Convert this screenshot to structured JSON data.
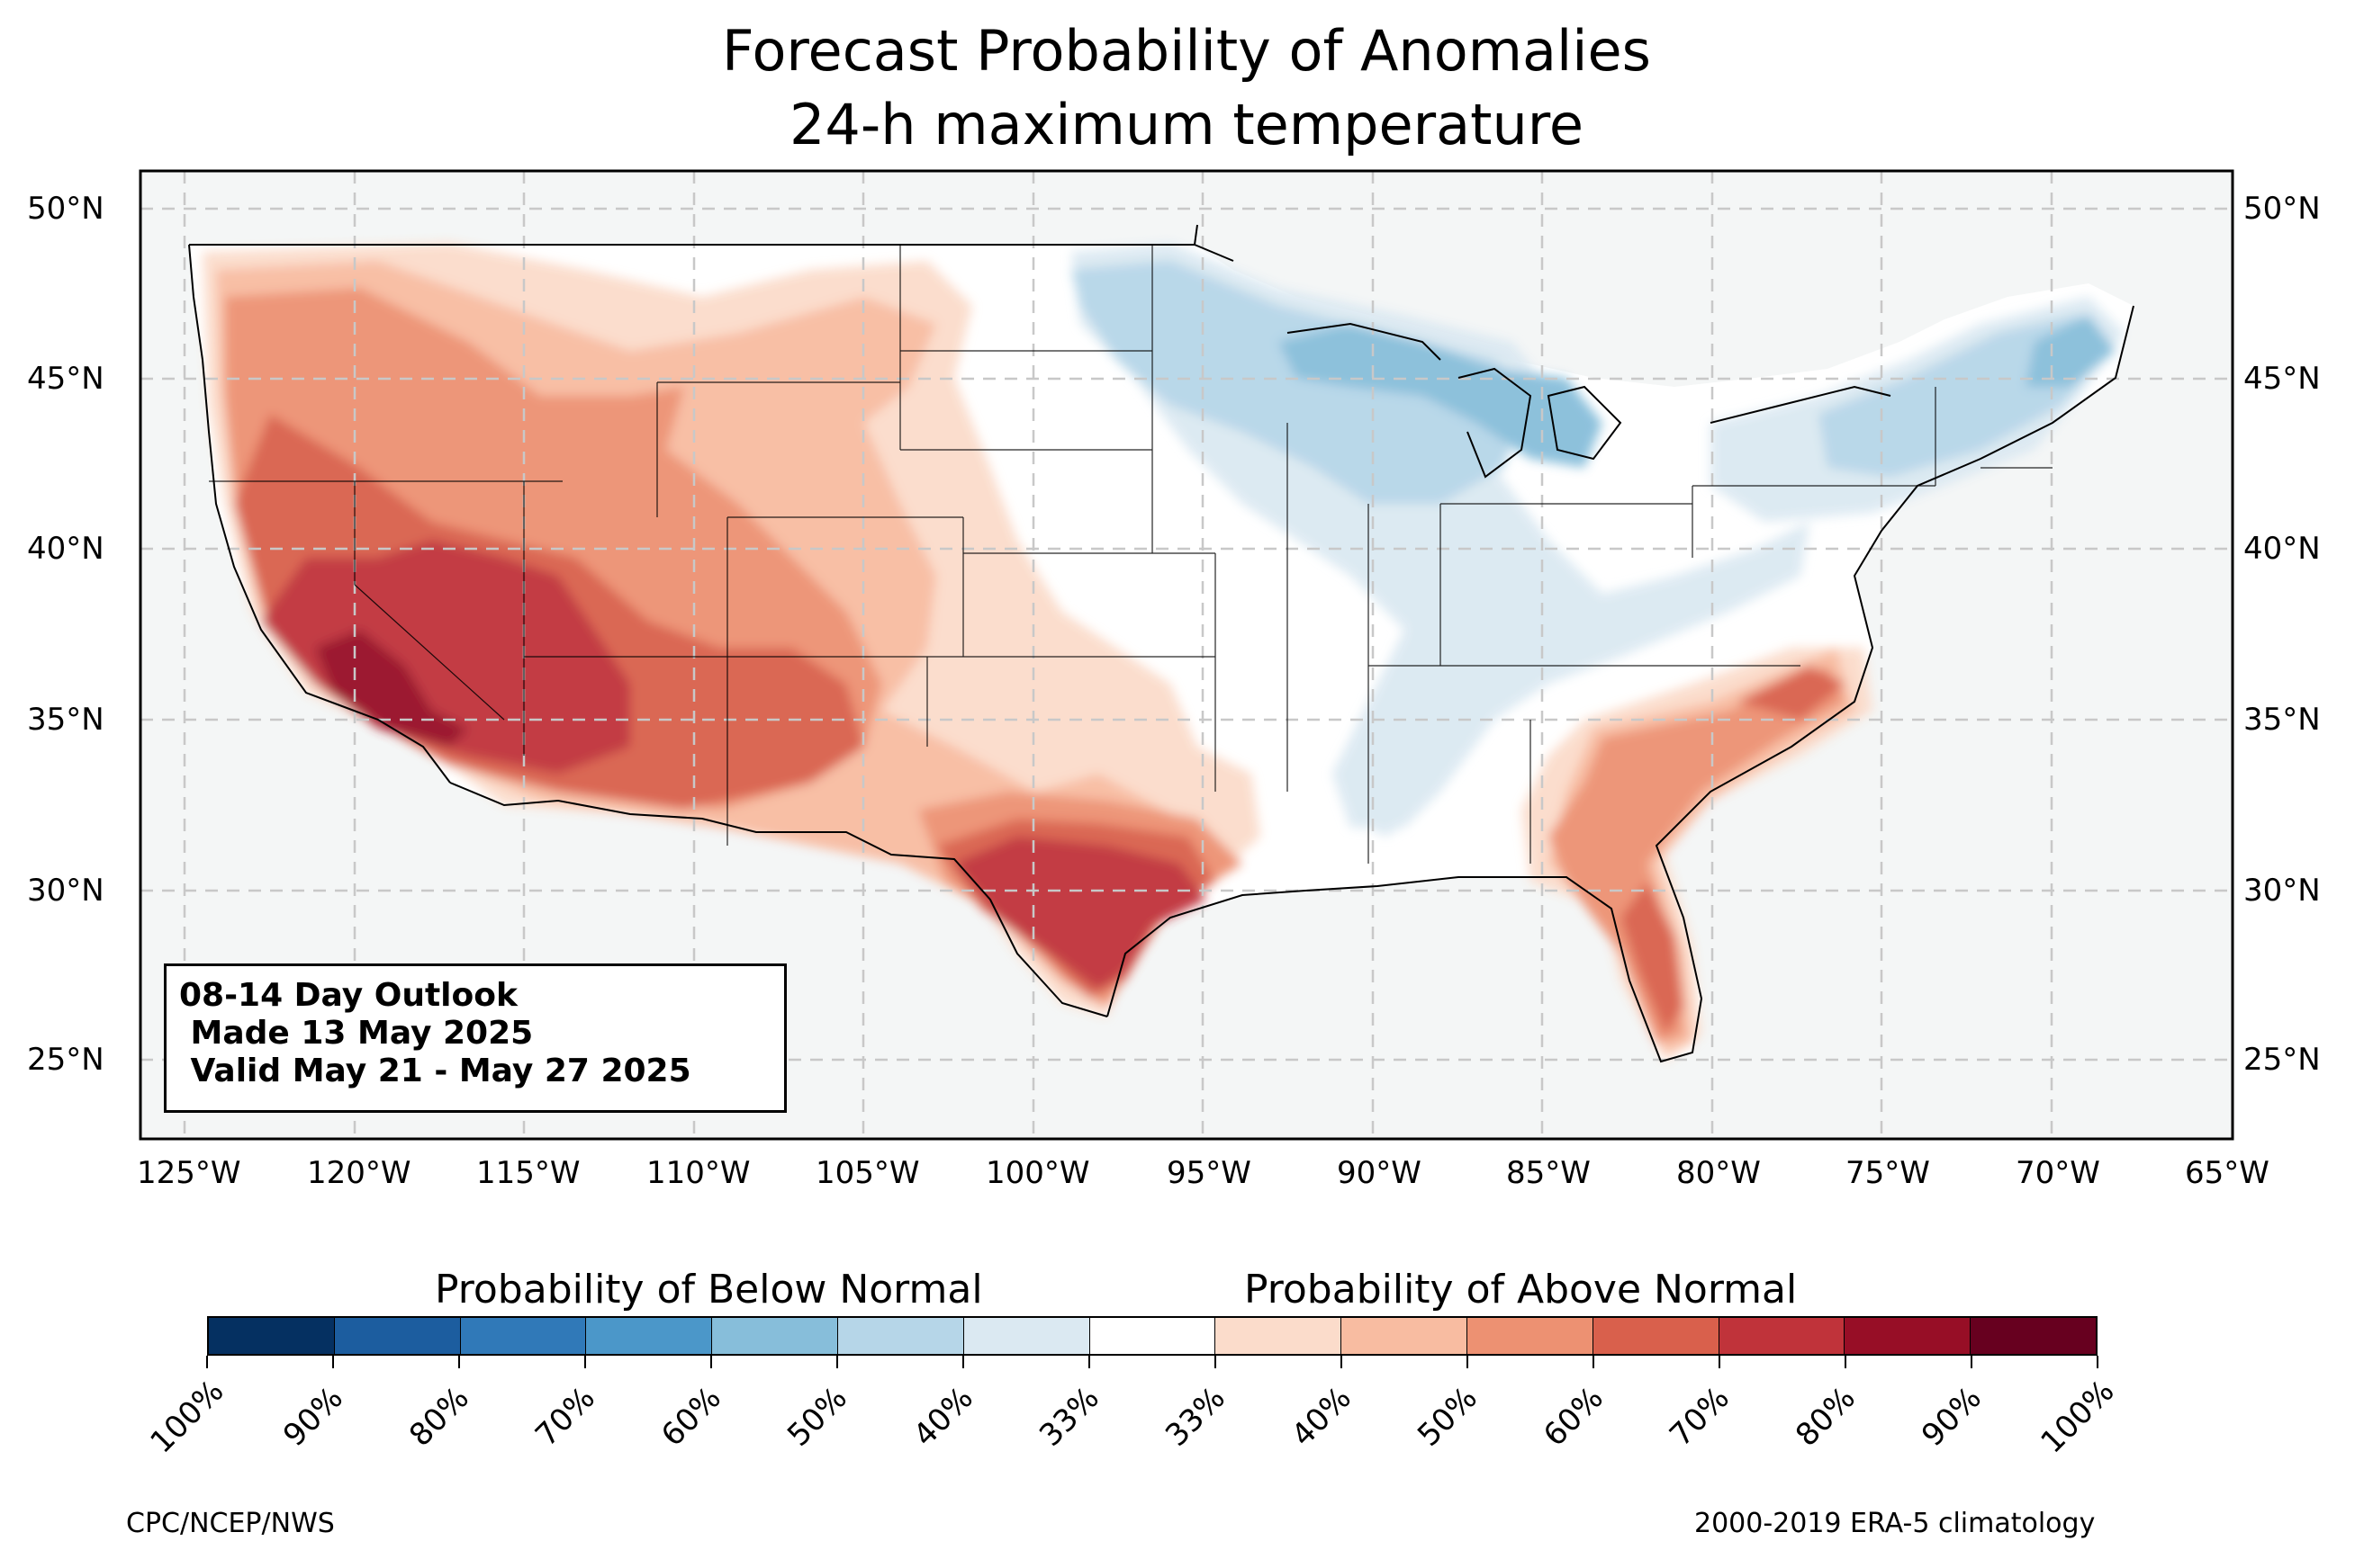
{
  "title": {
    "line1": "Forecast Probability of Anomalies",
    "line2": "24-h maximum temperature"
  },
  "map": {
    "region": "Contiguous United States",
    "lat_range": [
      22.7,
      51.2
    ],
    "lon_range": [
      -126.3,
      -65
    ],
    "lat_labels": [
      "50°N",
      "45°N",
      "40°N",
      "35°N",
      "30°N",
      "25°N"
    ],
    "lat_values": [
      50,
      45,
      40,
      35,
      30,
      25
    ],
    "lon_labels": [
      "125°W",
      "120°W",
      "115°W",
      "110°W",
      "105°W",
      "100°W",
      "95°W",
      "90°W",
      "85°W",
      "80°W",
      "75°W",
      "70°W",
      "65°W"
    ],
    "lon_values": [
      -125,
      -120,
      -115,
      -110,
      -105,
      -100,
      -95,
      -90,
      -85,
      -80,
      -75,
      -70,
      -65
    ],
    "gridlines": "dashed",
    "land_color": "#f4f6f6"
  },
  "info_box": {
    "line1": "08-14 Day Outlook",
    "line2": " Made 13 May 2025",
    "line3": " Valid May 21 - May 27 2025"
  },
  "colorbar": {
    "below_label": "Probability of Below Normal",
    "above_label": "Probability of Above Normal",
    "colors": [
      "#053061",
      "#1c5d9f",
      "#3079b8",
      "#4b97c9",
      "#87beda",
      "#b6d6e8",
      "#dbe9f2",
      "#ffffff",
      "#fbdccb",
      "#f8bca1",
      "#ed9172",
      "#d9604c",
      "#c0333a",
      "#970e26",
      "#67001f"
    ],
    "tick_labels": [
      "100%",
      "90%",
      "80%",
      "70%",
      "60%",
      "50%",
      "40%",
      "33%",
      "33%",
      "40%",
      "50%",
      "60%",
      "70%",
      "80%",
      "90%",
      "100%"
    ]
  },
  "footer": {
    "left": "CPC/NCEP/NWS",
    "right": "2000-2019 ERA-5 climatology"
  },
  "anomaly_regions": [
    {
      "name": "Southwest (CA/NV/AZ/UT)",
      "category": "above",
      "max_probability": "80-90%"
    },
    {
      "name": "South Texas",
      "category": "above",
      "max_probability": "70-80%"
    },
    {
      "name": "Four Corners / New Mexico / Colorado",
      "category": "above",
      "max_probability": "60-70%"
    },
    {
      "name": "Pacific Northwest / Northern Rockies",
      "category": "above",
      "max_probability": "40-60%"
    },
    {
      "name": "Southeast / Florida / Carolinas",
      "category": "above",
      "max_probability": "60-70%"
    },
    {
      "name": "Upper Midwest / Great Lakes",
      "category": "below",
      "max_probability": "50-60%"
    },
    {
      "name": "New England",
      "category": "below",
      "max_probability": "50-60%"
    },
    {
      "name": "Ohio Valley / Mid-South",
      "category": "below",
      "max_probability": "33-40%"
    }
  ]
}
